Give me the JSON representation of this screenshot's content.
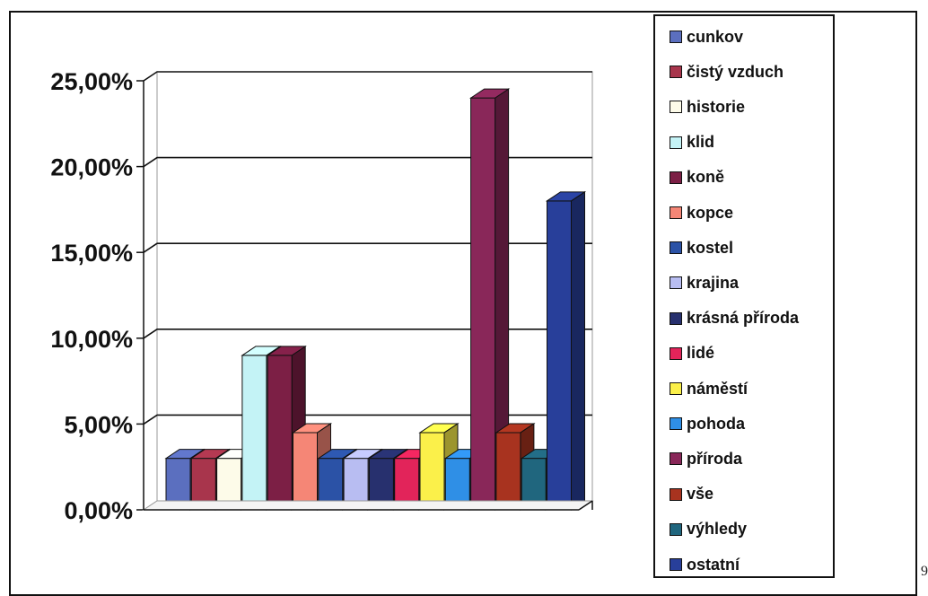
{
  "chart_data": {
    "type": "bar",
    "title": "",
    "xlabel": "",
    "ylabel": "",
    "ylim": [
      0,
      25
    ],
    "yticks": [
      0,
      5,
      10,
      15,
      20,
      25
    ],
    "ytick_labels": [
      "0,00%",
      "5,00%",
      "10,00%",
      "15,00%",
      "20,00%",
      "25,00%"
    ],
    "grid": true,
    "legend_position": "right",
    "series": [
      {
        "name": "cunkov",
        "value": 3.0,
        "color": "#5b6fbf"
      },
      {
        "name": "čistý vzduch",
        "value": 3.0,
        "color": "#a8354c"
      },
      {
        "name": "historie",
        "value": 3.0,
        "color": "#fdfbe9"
      },
      {
        "name": "klid",
        "value": 9.0,
        "color": "#c4f3f6"
      },
      {
        "name": "koně",
        "value": 9.0,
        "color": "#7c1f45"
      },
      {
        "name": "kopce",
        "value": 4.5,
        "color": "#f58676"
      },
      {
        "name": "kostel",
        "value": 3.0,
        "color": "#2b52a6"
      },
      {
        "name": "krajina",
        "value": 3.0,
        "color": "#b8bdf2"
      },
      {
        "name": "krásná příroda",
        "value": 3.0,
        "color": "#27306e"
      },
      {
        "name": "lidé",
        "value": 3.0,
        "color": "#e2245a"
      },
      {
        "name": "náměstí",
        "value": 4.5,
        "color": "#fbf04a"
      },
      {
        "name": "pohoda",
        "value": 3.0,
        "color": "#2f8fe6"
      },
      {
        "name": "příroda",
        "value": 24.0,
        "color": "#892759"
      },
      {
        "name": "vše",
        "value": 4.5,
        "color": "#a8331f"
      },
      {
        "name": "výhledy",
        "value": 3.0,
        "color": "#20667e"
      },
      {
        "name": "ostatní",
        "value": 18.0,
        "color": "#283f9a"
      }
    ]
  },
  "page_number": "9"
}
